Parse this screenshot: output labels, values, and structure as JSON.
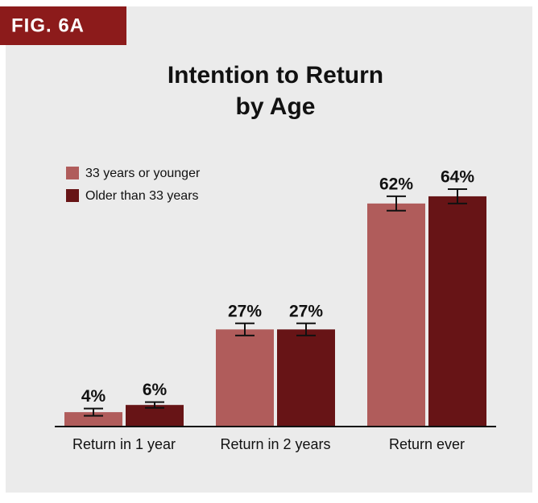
{
  "chart_data": {
    "type": "bar",
    "figure_label": "FIG. 6A",
    "title": [
      "Intention to Return",
      "by Age"
    ],
    "categories": [
      "Return in 1 year",
      "Return in 2 years",
      "Return ever"
    ],
    "series": [
      {
        "name": "33 years or younger",
        "color": "#b05c5b",
        "values": [
          4,
          27,
          62
        ],
        "errors": [
          1,
          1.7,
          2
        ],
        "value_labels": [
          "4%",
          "27%",
          "62%"
        ]
      },
      {
        "name": "Older than 33 years",
        "color": "#671416",
        "values": [
          6,
          27,
          64
        ],
        "errors": [
          0.8,
          1.7,
          2
        ],
        "value_labels": [
          "6%",
          "27%",
          "64%"
        ]
      }
    ]
  }
}
